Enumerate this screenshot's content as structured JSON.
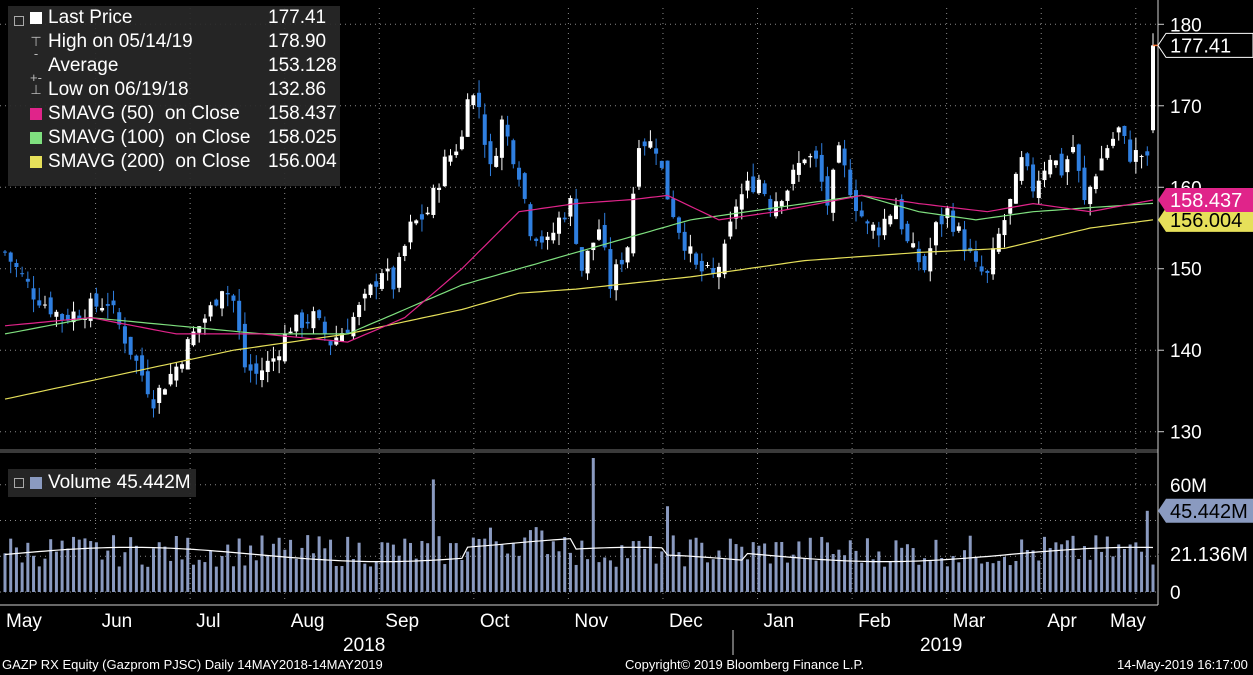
{
  "legend": {
    "last_price_label": "Last Price",
    "last_price_value": "177.41",
    "high_label": "High on 05/14/19",
    "high_value": "178.90",
    "average_label": "Average",
    "average_value": "153.128",
    "low_label": "Low on 06/19/18",
    "low_value": "132.86",
    "sma50_label": "SMAVG (50)  on Close",
    "sma50_value": "158.437",
    "sma100_label": "SMAVG (100)  on Close",
    "sma100_value": "158.025",
    "sma200_label": "SMAVG (200)  on Close",
    "sma200_value": "156.004"
  },
  "volume_legend": {
    "label": "Volume 45.442M"
  },
  "price_tags": {
    "last": "177.41",
    "sma50": "158.437",
    "sma200": "156.004"
  },
  "volume_tags": {
    "last": "45.442M",
    "average": "21.136M"
  },
  "footer": {
    "left": "GAZP RX Equity (Gazprom PJSC)  Daily 14MAY2018-14MAY2019",
    "center": "Copyright© 2019 Bloomberg Finance L.P.",
    "right": "14-May-2019 16:17:00"
  },
  "colors": {
    "up": "#ffffff",
    "down": "#2f7fe0",
    "sma50": "#e0248a",
    "sma100": "#7fe07f",
    "sma200": "#e6e05a",
    "volume": "#8a9ac0",
    "volume_avg": "#ffffff",
    "last_line": "#ff7f3f",
    "grid": "#8a8a8a",
    "background": "#000000"
  },
  "chart_data": [
    {
      "type": "candlestick",
      "title": "GAZP RX Equity (Gazprom PJSC)",
      "ylim": [
        128,
        182
      ],
      "yticks": [
        130,
        140,
        150,
        160,
        170,
        180
      ],
      "x_month_labels": [
        "May",
        "Jun",
        "Jul",
        "Aug",
        "Sep",
        "Oct",
        "Nov",
        "Dec",
        "Jan",
        "Feb",
        "Mar",
        "Apr",
        "May"
      ],
      "x_year_labels": [
        "2018",
        "2019"
      ],
      "grid": true,
      "close_path": [
        [
          0,
          152
        ],
        [
          5,
          147
        ],
        [
          10,
          144
        ],
        [
          14,
          145
        ],
        [
          18,
          146
        ],
        [
          20,
          143
        ],
        [
          24,
          137
        ],
        [
          26,
          134
        ],
        [
          30,
          138
        ],
        [
          33,
          142
        ],
        [
          36,
          145
        ],
        [
          38,
          148
        ],
        [
          40,
          146
        ],
        [
          42,
          138
        ],
        [
          44,
          137
        ],
        [
          47,
          139
        ],
        [
          50,
          143
        ],
        [
          54,
          144
        ],
        [
          57,
          141
        ],
        [
          60,
          143
        ],
        [
          63,
          146
        ],
        [
          66,
          150
        ],
        [
          68,
          148
        ],
        [
          71,
          155
        ],
        [
          74,
          157
        ],
        [
          77,
          163
        ],
        [
          80,
          166
        ],
        [
          81,
          172
        ],
        [
          83,
          170
        ],
        [
          85,
          162
        ],
        [
          87,
          168
        ],
        [
          90,
          162
        ],
        [
          92,
          155
        ],
        [
          95,
          153
        ],
        [
          97,
          156
        ],
        [
          99,
          158
        ],
        [
          101,
          150
        ],
        [
          104,
          155
        ],
        [
          106,
          148
        ],
        [
          109,
          153
        ],
        [
          111,
          166
        ],
        [
          114,
          165
        ],
        [
          116,
          159
        ],
        [
          118,
          155
        ],
        [
          121,
          150
        ],
        [
          124,
          149
        ],
        [
          126,
          152
        ],
        [
          128,
          158
        ],
        [
          130,
          160
        ],
        [
          132,
          161
        ],
        [
          134,
          158
        ],
        [
          137,
          160
        ],
        [
          140,
          164
        ],
        [
          142,
          163
        ],
        [
          144,
          158
        ],
        [
          146,
          164
        ],
        [
          149,
          158
        ],
        [
          151,
          155
        ],
        [
          153,
          155
        ],
        [
          156,
          158
        ],
        [
          158,
          153
        ],
        [
          161,
          150
        ],
        [
          163,
          155
        ],
        [
          165,
          157
        ],
        [
          168,
          153
        ],
        [
          170,
          150
        ],
        [
          172,
          149
        ],
        [
          174,
          154
        ],
        [
          176,
          158
        ],
        [
          178,
          163
        ],
        [
          180,
          160
        ],
        [
          183,
          164
        ],
        [
          185,
          162
        ],
        [
          187,
          165
        ],
        [
          189,
          158
        ],
        [
          191,
          162
        ],
        [
          193,
          165
        ],
        [
          195,
          167
        ],
        [
          197,
          164
        ],
        [
          199,
          164
        ],
        [
          200,
          163
        ],
        [
          201,
          177.41
        ]
      ],
      "sma50_path": [
        [
          0,
          143
        ],
        [
          15,
          144
        ],
        [
          30,
          142
        ],
        [
          45,
          142
        ],
        [
          60,
          141
        ],
        [
          70,
          144
        ],
        [
          80,
          150
        ],
        [
          90,
          157
        ],
        [
          100,
          158
        ],
        [
          110,
          158.5
        ],
        [
          116,
          159
        ],
        [
          125,
          156
        ],
        [
          135,
          157
        ],
        [
          150,
          159
        ],
        [
          160,
          158
        ],
        [
          172,
          157
        ],
        [
          180,
          158
        ],
        [
          190,
          157
        ],
        [
          201,
          158.437
        ]
      ],
      "sma100_path": [
        [
          0,
          142
        ],
        [
          15,
          144
        ],
        [
          30,
          143
        ],
        [
          45,
          142
        ],
        [
          60,
          142
        ],
        [
          70,
          145
        ],
        [
          80,
          148
        ],
        [
          90,
          150
        ],
        [
          100,
          152
        ],
        [
          110,
          154
        ],
        [
          120,
          156
        ],
        [
          130,
          157
        ],
        [
          140,
          158
        ],
        [
          150,
          159
        ],
        [
          160,
          157
        ],
        [
          170,
          156
        ],
        [
          180,
          157
        ],
        [
          190,
          157.5
        ],
        [
          201,
          158.025
        ]
      ],
      "sma200_path": [
        [
          0,
          134
        ],
        [
          20,
          137
        ],
        [
          40,
          140
        ],
        [
          60,
          142
        ],
        [
          80,
          145
        ],
        [
          90,
          147
        ],
        [
          100,
          147.5
        ],
        [
          120,
          149
        ],
        [
          140,
          151
        ],
        [
          160,
          152
        ],
        [
          175,
          152.5
        ],
        [
          190,
          155
        ],
        [
          201,
          156.004
        ]
      ]
    },
    {
      "type": "bar",
      "title": "Volume",
      "ylim": [
        0,
        75
      ],
      "yticks": [
        0,
        20,
        40,
        60
      ],
      "ytick_labels": [
        "0",
        "",
        "",
        "60M"
      ],
      "unit": "M",
      "last_volume": 45.442,
      "average_volume": 21.136,
      "spikes": {
        "75": 63,
        "103": 75,
        "116": 48,
        "200": 45.442
      }
    }
  ]
}
